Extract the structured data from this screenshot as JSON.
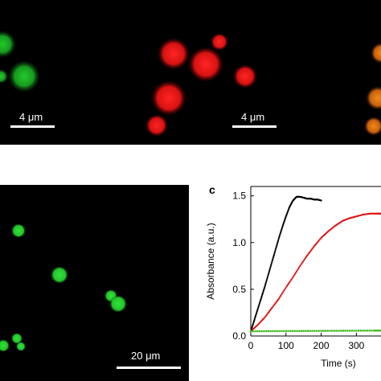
{
  "figure": {
    "panel_letter_c": "c",
    "scalebar_top_left": "4 μm",
    "scalebar_top_middle": "4 μm",
    "scalebar_bottom": "20 μm"
  },
  "colors": {
    "green_particle": "#22c42a",
    "red_particle": "#e01010",
    "orange_particle": "#e87a12",
    "black_series": "#000000",
    "red_series": "#dd1111",
    "green_series": "#44bb22"
  },
  "chart_data": {
    "type": "line",
    "xlabel": "Time (s)",
    "ylabel": "Absorbance (a.u.)",
    "xlim": [
      0,
      370
    ],
    "ylim": [
      0,
      1.6
    ],
    "xticks": [
      0,
      100,
      200,
      300
    ],
    "yticks": [
      0.0,
      0.5,
      1.0,
      1.5
    ],
    "xtick_labels": [
      "0",
      "100",
      "200",
      "300"
    ],
    "ytick_labels": [
      "0.0",
      "0.5",
      "1.0",
      "1.5"
    ],
    "grid": false,
    "legend": "none",
    "series": [
      {
        "color": "#000000",
        "x": [
          0,
          10,
          20,
          30,
          40,
          50,
          60,
          70,
          80,
          90,
          100,
          110,
          120,
          130,
          140,
          150,
          160,
          170,
          180,
          190,
          200
        ],
        "y": [
          0.05,
          0.17,
          0.29,
          0.41,
          0.53,
          0.66,
          0.79,
          0.92,
          1.05,
          1.17,
          1.28,
          1.38,
          1.45,
          1.49,
          1.49,
          1.48,
          1.47,
          1.47,
          1.46,
          1.46,
          1.45
        ]
      },
      {
        "color": "#dd1111",
        "x": [
          0,
          20,
          40,
          60,
          80,
          100,
          120,
          140,
          160,
          180,
          200,
          220,
          240,
          260,
          280,
          300,
          320,
          340,
          360,
          370
        ],
        "y": [
          0.05,
          0.12,
          0.2,
          0.3,
          0.4,
          0.52,
          0.63,
          0.75,
          0.86,
          0.96,
          1.05,
          1.12,
          1.18,
          1.23,
          1.26,
          1.28,
          1.3,
          1.31,
          1.31,
          1.31
        ]
      },
      {
        "color": "#44bb22",
        "x": [
          0,
          50,
          100,
          150,
          200,
          250,
          300,
          350,
          370
        ],
        "y": [
          0.05,
          0.052,
          0.053,
          0.054,
          0.055,
          0.056,
          0.057,
          0.058,
          0.058
        ]
      }
    ]
  }
}
